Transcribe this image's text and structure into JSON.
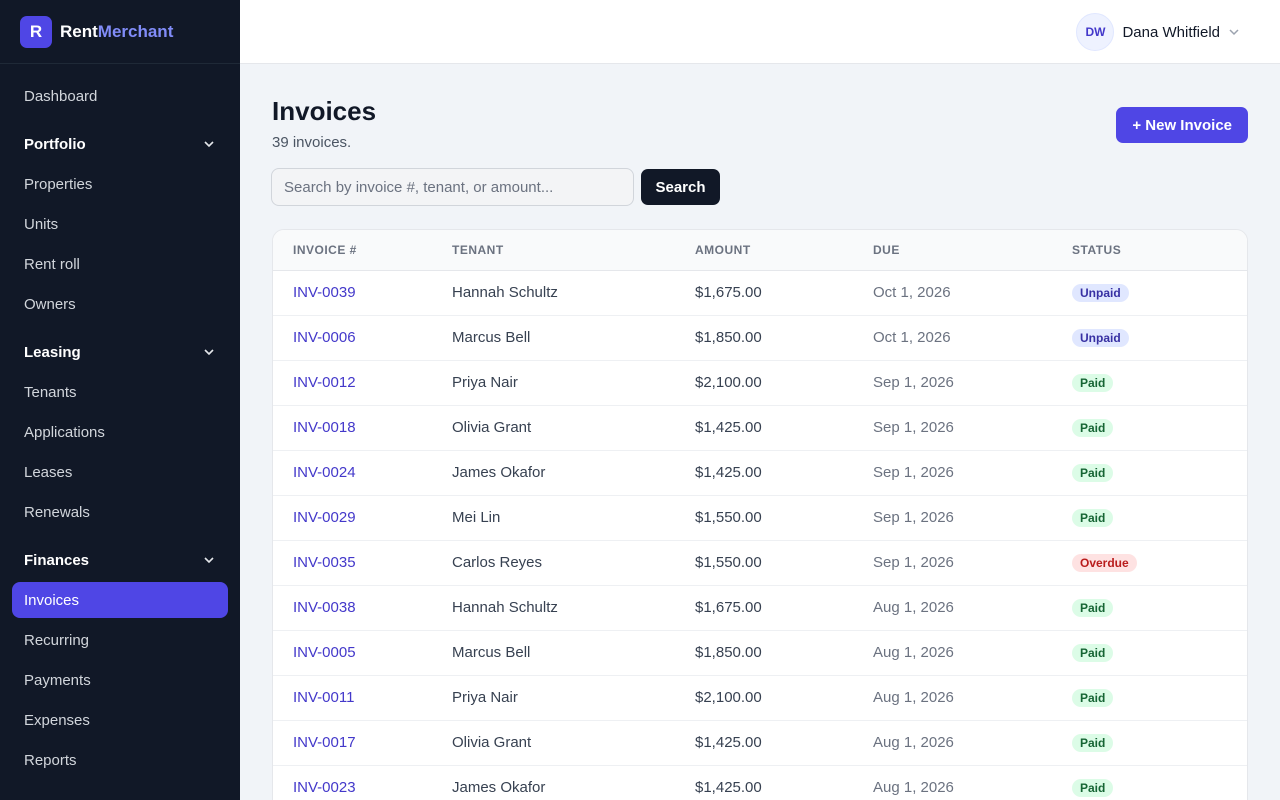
{
  "brand": {
    "logo_letter": "R",
    "name_part1": "Rent",
    "name_part2": "Merchant"
  },
  "user": {
    "initials": "DW",
    "name": "Dana Whitfield"
  },
  "sidebar": {
    "dashboard": "Dashboard",
    "groups": [
      {
        "label": "Portfolio",
        "items": [
          "Properties",
          "Units",
          "Rent roll",
          "Owners"
        ]
      },
      {
        "label": "Leasing",
        "items": [
          "Tenants",
          "Applications",
          "Leases",
          "Renewals"
        ]
      },
      {
        "label": "Finances",
        "items": [
          "Invoices",
          "Recurring",
          "Payments",
          "Expenses",
          "Reports"
        ]
      }
    ],
    "active": "Invoices"
  },
  "page": {
    "title": "Invoices",
    "subtitle": "39 invoices.",
    "new_button": "+ New Invoice",
    "search_placeholder": "Search by invoice #, tenant, or amount...",
    "search_button": "Search"
  },
  "table": {
    "columns": [
      "INVOICE #",
      "TENANT",
      "AMOUNT",
      "DUE",
      "STATUS"
    ],
    "rows": [
      {
        "invoice": "INV-0039",
        "tenant": "Hannah Schultz",
        "amount": "$1,675.00",
        "due": "Oct 1, 2026",
        "status": "Unpaid"
      },
      {
        "invoice": "INV-0006",
        "tenant": "Marcus Bell",
        "amount": "$1,850.00",
        "due": "Oct 1, 2026",
        "status": "Unpaid"
      },
      {
        "invoice": "INV-0012",
        "tenant": "Priya Nair",
        "amount": "$2,100.00",
        "due": "Sep 1, 2026",
        "status": "Paid"
      },
      {
        "invoice": "INV-0018",
        "tenant": "Olivia Grant",
        "amount": "$1,425.00",
        "due": "Sep 1, 2026",
        "status": "Paid"
      },
      {
        "invoice": "INV-0024",
        "tenant": "James Okafor",
        "amount": "$1,425.00",
        "due": "Sep 1, 2026",
        "status": "Paid"
      },
      {
        "invoice": "INV-0029",
        "tenant": "Mei Lin",
        "amount": "$1,550.00",
        "due": "Sep 1, 2026",
        "status": "Paid"
      },
      {
        "invoice": "INV-0035",
        "tenant": "Carlos Reyes",
        "amount": "$1,550.00",
        "due": "Sep 1, 2026",
        "status": "Overdue"
      },
      {
        "invoice": "INV-0038",
        "tenant": "Hannah Schultz",
        "amount": "$1,675.00",
        "due": "Aug 1, 2026",
        "status": "Paid"
      },
      {
        "invoice": "INV-0005",
        "tenant": "Marcus Bell",
        "amount": "$1,850.00",
        "due": "Aug 1, 2026",
        "status": "Paid"
      },
      {
        "invoice": "INV-0011",
        "tenant": "Priya Nair",
        "amount": "$2,100.00",
        "due": "Aug 1, 2026",
        "status": "Paid"
      },
      {
        "invoice": "INV-0017",
        "tenant": "Olivia Grant",
        "amount": "$1,425.00",
        "due": "Aug 1, 2026",
        "status": "Paid"
      },
      {
        "invoice": "INV-0023",
        "tenant": "James Okafor",
        "amount": "$1,425.00",
        "due": "Aug 1, 2026",
        "status": "Paid"
      }
    ]
  },
  "colors": {
    "accent": "#4f46e5",
    "sidebar_bg": "#111827",
    "paid": "#dcfce7",
    "unpaid": "#e0e7ff",
    "overdue": "#fee2e2"
  },
  "icons": {
    "chevron": "chevron-down-icon"
  }
}
